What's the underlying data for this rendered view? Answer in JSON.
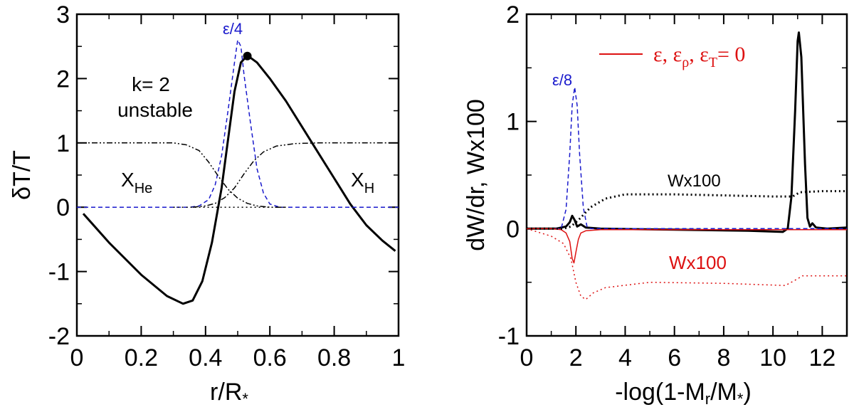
{
  "chart_data": [
    {
      "type": "line",
      "xlabel": "r/R",
      "xlabel_sub": "*",
      "ylabel": "δT/T",
      "xlim": [
        0,
        1
      ],
      "ylim": [
        -2,
        3
      ],
      "x_ticks": [
        "0",
        "0.2",
        "0.4",
        "0.6",
        "0.8",
        "1"
      ],
      "y_ticks": [
        "-2",
        "-1",
        "0",
        "1",
        "2",
        "3"
      ],
      "annotations": {
        "mode": "k= 2",
        "status": "unstable",
        "he_label": "X",
        "he_sub": "He",
        "h_label": "X",
        "h_sub": "H",
        "eps_label": "ε/4"
      },
      "colors": {
        "main": "#000000",
        "eps": "#1a1acc"
      },
      "series": [
        {
          "style": "solid",
          "points": [
            [
              0.02,
              -0.1
            ],
            [
              0.1,
              -0.55
            ],
            [
              0.2,
              -1.05
            ],
            [
              0.28,
              -1.38
            ],
            [
              0.33,
              -1.5
            ],
            [
              0.36,
              -1.45
            ],
            [
              0.39,
              -1.15
            ],
            [
              0.42,
              -0.55
            ],
            [
              0.45,
              0.3
            ],
            [
              0.47,
              1.05
            ],
            [
              0.49,
              1.8
            ],
            [
              0.51,
              2.25
            ],
            [
              0.53,
              2.36
            ],
            [
              0.56,
              2.25
            ],
            [
              0.6,
              2.0
            ],
            [
              0.65,
              1.65
            ],
            [
              0.7,
              1.25
            ],
            [
              0.75,
              0.85
            ],
            [
              0.8,
              0.45
            ],
            [
              0.85,
              0.05
            ],
            [
              0.9,
              -0.28
            ],
            [
              0.95,
              -0.52
            ],
            [
              0.99,
              -0.68
            ]
          ]
        },
        {
          "style": "dashed",
          "points": [
            [
              0.0,
              0.0
            ],
            [
              0.35,
              0.0
            ],
            [
              0.38,
              0.02
            ],
            [
              0.41,
              0.12
            ],
            [
              0.43,
              0.35
            ],
            [
              0.45,
              0.8
            ],
            [
              0.47,
              1.5
            ],
            [
              0.49,
              2.25
            ],
            [
              0.5,
              2.6
            ],
            [
              0.51,
              2.5
            ],
            [
              0.52,
              2.05
            ],
            [
              0.54,
              1.3
            ],
            [
              0.56,
              0.6
            ],
            [
              0.58,
              0.22
            ],
            [
              0.6,
              0.05
            ],
            [
              0.63,
              0.0
            ],
            [
              1.0,
              0.0
            ]
          ]
        },
        {
          "style": "dashdot",
          "points": [
            [
              0.0,
              1.0
            ],
            [
              0.3,
              1.0
            ],
            [
              0.34,
              0.97
            ],
            [
              0.38,
              0.88
            ],
            [
              0.41,
              0.7
            ],
            [
              0.44,
              0.48
            ],
            [
              0.47,
              0.28
            ],
            [
              0.5,
              0.14
            ],
            [
              0.53,
              0.06
            ],
            [
              0.56,
              0.02
            ],
            [
              0.6,
              0.0
            ],
            [
              0.65,
              0.0
            ]
          ]
        },
        {
          "style": "dashdot",
          "points": [
            [
              0.36,
              0.0
            ],
            [
              0.4,
              0.02
            ],
            [
              0.43,
              0.06
            ],
            [
              0.46,
              0.15
            ],
            [
              0.49,
              0.3
            ],
            [
              0.52,
              0.52
            ],
            [
              0.55,
              0.72
            ],
            [
              0.58,
              0.86
            ],
            [
              0.62,
              0.95
            ],
            [
              0.68,
              0.99
            ],
            [
              0.75,
              1.0
            ],
            [
              1.0,
              1.0
            ]
          ]
        },
        {
          "style": "dotted",
          "points": [
            [
              0.3,
              0.0
            ],
            [
              0.65,
              0.0
            ]
          ]
        }
      ],
      "marker_point": [
        0.53,
        2.35
      ]
    },
    {
      "type": "line",
      "xlabel": "-log(1-M",
      "xlabel_sub": "r",
      "xlabel_mid": "/M",
      "xlabel_sub2": "*",
      "xlabel_end": ")",
      "ylabel": "dW/dr, Wx100",
      "xlim": [
        0,
        13
      ],
      "ylim": [
        -1,
        2
      ],
      "x_ticks": [
        "0",
        "2",
        "4",
        "6",
        "8",
        "10",
        "12"
      ],
      "y_ticks": [
        "-1",
        "0",
        "1",
        "2"
      ],
      "annotations": {
        "eps_label": "ε/8",
        "w_black": "Wx100",
        "w_red": "Wx100",
        "legend_text": "ε, ε",
        "legend_sub1": "ρ",
        "legend_mid": ", ε",
        "legend_sub2": "T",
        "legend_end": "= 0"
      },
      "colors": {
        "main": "#000000",
        "eps": "#1a1acc",
        "red": "#dd1111"
      },
      "series": [
        {
          "style": "solid",
          "points": [
            [
              0,
              0.0
            ],
            [
              1.2,
              0.0
            ],
            [
              1.6,
              0.02
            ],
            [
              1.75,
              0.06
            ],
            [
              1.85,
              0.12
            ],
            [
              1.95,
              0.08
            ],
            [
              2.05,
              0.02
            ],
            [
              2.2,
              0.04
            ],
            [
              2.4,
              0.01
            ],
            [
              3,
              0.0
            ],
            [
              6,
              -0.01
            ],
            [
              9,
              -0.02
            ],
            [
              10.4,
              -0.03
            ],
            [
              10.6,
              0.0
            ],
            [
              10.75,
              0.3
            ],
            [
              10.9,
              1.1
            ],
            [
              11.0,
              1.75
            ],
            [
              11.05,
              1.83
            ],
            [
              11.15,
              1.6
            ],
            [
              11.3,
              0.6
            ],
            [
              11.4,
              0.1
            ],
            [
              11.5,
              0.02
            ],
            [
              11.6,
              0.05
            ],
            [
              11.75,
              0.01
            ],
            [
              12.2,
              0.0
            ],
            [
              13,
              0.01
            ]
          ]
        },
        {
          "style": "dashed",
          "points": [
            [
              0,
              0.0
            ],
            [
              1.4,
              0.0
            ],
            [
              1.6,
              0.18
            ],
            [
              1.75,
              0.7
            ],
            [
              1.85,
              1.15
            ],
            [
              1.95,
              1.32
            ],
            [
              2.05,
              1.15
            ],
            [
              2.15,
              0.7
            ],
            [
              2.3,
              0.2
            ],
            [
              2.45,
              0.02
            ],
            [
              2.6,
              0.0
            ],
            [
              13,
              0.0
            ]
          ]
        },
        {
          "style": "solid",
          "color": "red",
          "points": [
            [
              0,
              0.0
            ],
            [
              1.0,
              0.0
            ],
            [
              1.4,
              -0.01
            ],
            [
              1.6,
              -0.04
            ],
            [
              1.75,
              -0.12
            ],
            [
              1.85,
              -0.28
            ],
            [
              1.92,
              -0.32
            ],
            [
              2.0,
              -0.22
            ],
            [
              2.1,
              -0.1
            ],
            [
              2.2,
              -0.04
            ],
            [
              2.4,
              -0.02
            ],
            [
              3,
              -0.01
            ],
            [
              13,
              -0.01
            ]
          ]
        },
        {
          "style": "dotted",
          "points": [
            [
              0,
              0.0
            ],
            [
              1.5,
              0.0
            ],
            [
              1.8,
              0.02
            ],
            [
              2.1,
              0.08
            ],
            [
              2.6,
              0.2
            ],
            [
              3.2,
              0.28
            ],
            [
              4,
              0.32
            ],
            [
              6,
              0.32
            ],
            [
              8,
              0.31
            ],
            [
              10,
              0.3
            ],
            [
              10.8,
              0.3
            ],
            [
              11.1,
              0.34
            ],
            [
              12,
              0.35
            ],
            [
              13,
              0.35
            ]
          ]
        },
        {
          "style": "dotted",
          "color": "red",
          "points": [
            [
              0,
              0.0
            ],
            [
              1.0,
              -0.07
            ],
            [
              1.5,
              -0.14
            ],
            [
              1.8,
              -0.28
            ],
            [
              2.0,
              -0.5
            ],
            [
              2.2,
              -0.63
            ],
            [
              2.4,
              -0.66
            ],
            [
              2.7,
              -0.6
            ],
            [
              3.2,
              -0.55
            ],
            [
              5,
              -0.5
            ],
            [
              8,
              -0.51
            ],
            [
              10.5,
              -0.53
            ],
            [
              10.9,
              -0.48
            ],
            [
              11.2,
              -0.44
            ],
            [
              12,
              -0.44
            ],
            [
              13,
              -0.44
            ]
          ]
        }
      ],
      "legend_line_color": "red"
    }
  ]
}
